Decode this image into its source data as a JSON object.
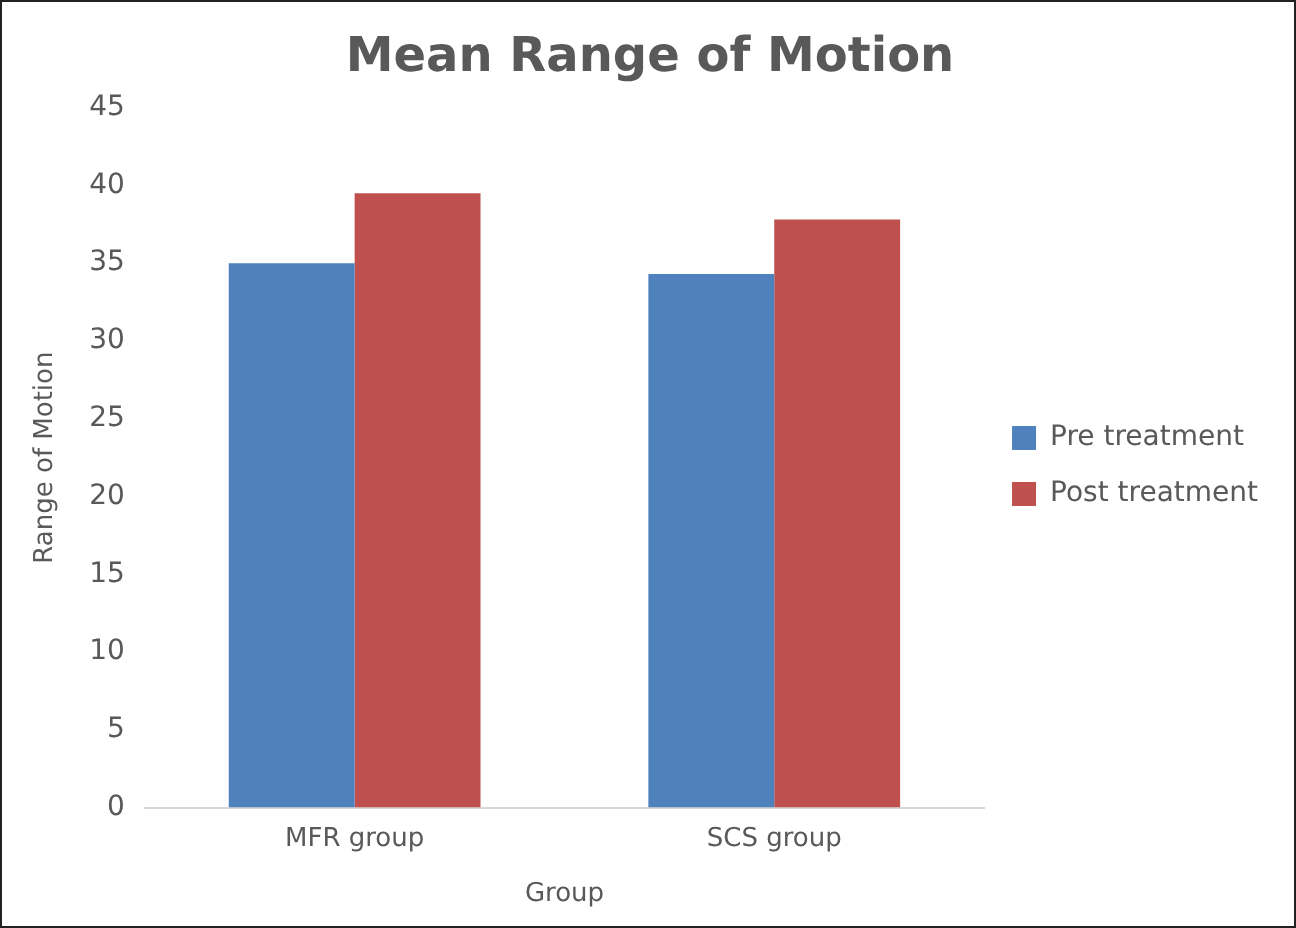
{
  "chart_data": {
    "type": "bar",
    "title": "Mean Range of Motion",
    "xlabel": "Group",
    "ylabel": "Range of Motion",
    "categories": [
      "MFR group",
      "SCS group"
    ],
    "series": [
      {
        "name": "Pre treatment",
        "color": "#4f81bd",
        "values": [
          35.0,
          34.3
        ]
      },
      {
        "name": "Post treatment",
        "color": "#c0504d",
        "values": [
          39.5,
          37.8
        ]
      }
    ],
    "ylim": [
      0,
      45
    ],
    "yticks": [
      0,
      5,
      10,
      15,
      20,
      25,
      30,
      35,
      40,
      45
    ],
    "grid": false,
    "legend": "right"
  }
}
